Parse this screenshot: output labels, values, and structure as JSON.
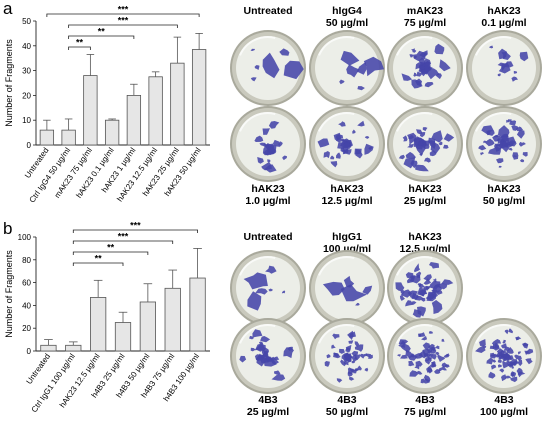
{
  "panels": [
    {
      "letter": "a",
      "chart_data": {
        "type": "bar",
        "ylabel": "Number of Fragments",
        "ylim": [
          0,
          50
        ],
        "yticks": [
          0,
          10,
          20,
          30,
          40,
          50
        ],
        "categories": [
          "Untreated",
          "Ctrl IgG4 50 µg/ml",
          "mAK23 75 µg/ml",
          "hAK23 0.1 µg/ml",
          "hAK23 1 µg/ml",
          "hAK23 12.5 µg/ml",
          "hAK23 25 µg/ml",
          "hAK23 50 µg/ml"
        ],
        "values": [
          6,
          6,
          28,
          10,
          20,
          27.5,
          33,
          38.5
        ],
        "errors": [
          4,
          4.5,
          8.5,
          0.5,
          4.5,
          2,
          10.5,
          6.5
        ],
        "significance": [
          {
            "from": 1,
            "to": 2,
            "label": "**"
          },
          {
            "from": 1,
            "to": 4,
            "label": "**"
          },
          {
            "from": 1,
            "to": 6,
            "label": "***"
          },
          {
            "from": 0,
            "to": 7,
            "label": "***"
          }
        ]
      },
      "wells": [
        {
          "line1": "Untreated",
          "line2": ""
        },
        {
          "line1": "hIgG4",
          "line2": "50 µg/ml"
        },
        {
          "line1": "mAK23",
          "line2": "75 µg/ml"
        },
        {
          "line1": "hAK23",
          "line2": "0.1 µg/ml"
        },
        {
          "line1": "hAK23",
          "line2": "1.0 µg/ml"
        },
        {
          "line1": "hAK23",
          "line2": "12.5 µg/ml"
        },
        {
          "line1": "hAK23",
          "line2": "25 µg/ml"
        },
        {
          "line1": "hAK23",
          "line2": "50 µg/ml"
        }
      ]
    },
    {
      "letter": "b",
      "chart_data": {
        "type": "bar",
        "ylabel": "Number of Fragments",
        "ylim": [
          0,
          100
        ],
        "yticks": [
          0,
          20,
          40,
          60,
          80,
          100
        ],
        "categories": [
          "Untreated",
          "Ctrl IgG1 100 µg/ml",
          "hAK23 12.5 µg/ml",
          "h4B3 25 µg/ml",
          "h4B3 50 µg/ml",
          "h4B3 75 µg/ml",
          "h4B3 100 µg/ml"
        ],
        "values": [
          5,
          5,
          47,
          25,
          43,
          55,
          64
        ],
        "errors": [
          5,
          3,
          15,
          9,
          16,
          16,
          26
        ],
        "significance": [
          {
            "from": 1,
            "to": 3,
            "label": "**"
          },
          {
            "from": 1,
            "to": 4,
            "label": "**"
          },
          {
            "from": 1,
            "to": 5,
            "label": "***"
          },
          {
            "from": 1,
            "to": 6,
            "label": "***"
          }
        ]
      },
      "wells": [
        {
          "line1": "Untreated",
          "line2": ""
        },
        {
          "line1": "hIgG1",
          "line2": "100 µg/ml"
        },
        {
          "line1": "hAK23",
          "line2": "12.5 µg/ml"
        },
        {
          "line1": "4B3",
          "line2": "25 µg/ml"
        },
        {
          "line1": "4B3",
          "line2": "50 µg/ml"
        },
        {
          "line1": "4B3",
          "line2": "75 µg/ml"
        },
        {
          "line1": "4B3",
          "line2": "100 µg/ml"
        }
      ]
    }
  ],
  "colors": {
    "bar_fill": "#e6e6e6",
    "bar_stroke": "#555555",
    "stain": "#4646a8",
    "well_rim": "#c9c9bd",
    "well_inner": "#eceee8"
  }
}
